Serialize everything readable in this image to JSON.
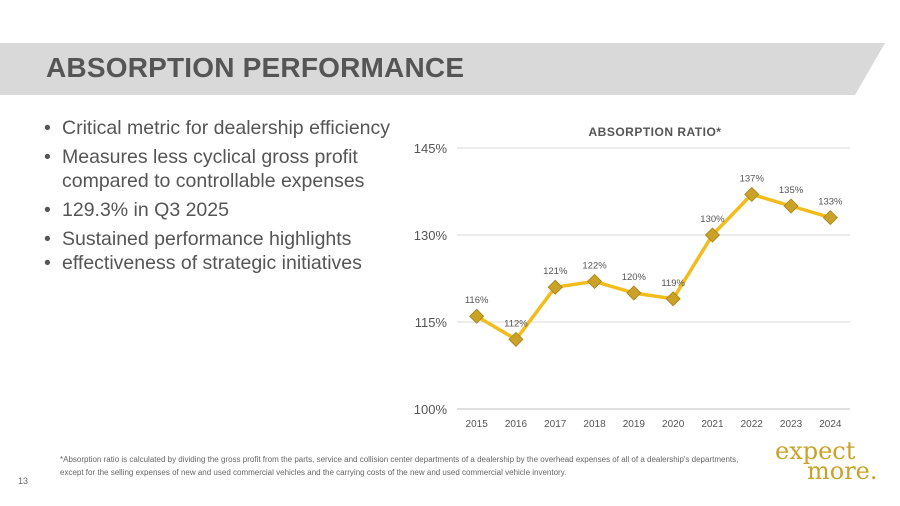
{
  "header": {
    "title": "ABSORPTION PERFORMANCE"
  },
  "bullets": [
    "Critical metric for dealership efficiency",
    "Measures less cyclical gross profit compared to controllable expenses",
    "129.3% in Q3 2025",
    "Sustained performance highlights",
    "effectiveness of strategic initiatives"
  ],
  "chart_data": {
    "type": "line",
    "title": "ABSORPTION RATIO*",
    "categories": [
      "2015",
      "2016",
      "2017",
      "2018",
      "2019",
      "2020",
      "2021",
      "2022",
      "2023",
      "2024"
    ],
    "values": [
      116,
      112,
      121,
      122,
      120,
      119,
      130,
      137,
      135,
      133
    ],
    "data_labels": [
      "116%",
      "112%",
      "121%",
      "122%",
      "120%",
      "119%",
      "130%",
      "137%",
      "135%",
      "133%"
    ],
    "ylim": [
      100,
      145
    ],
    "yticks": [
      100,
      115,
      130,
      145
    ],
    "ytick_labels": [
      "100%",
      "115%",
      "130%",
      "145%"
    ],
    "xlabel": "",
    "ylabel": "",
    "grid": true,
    "line_color": "#f2bd1c",
    "marker_color": "#c9a227"
  },
  "footnote": "*Absorption ratio is calculated by dividing the gross profit from the parts, service and collision center departments of a dealership by the overhead expenses of all of a dealership's departments, except for the selling expenses of new and used commercial vehicles and the carrying costs of the new and used commercial vehicle inventory.",
  "page_number": "13",
  "brand": {
    "line1": "expect",
    "line2": "more."
  }
}
